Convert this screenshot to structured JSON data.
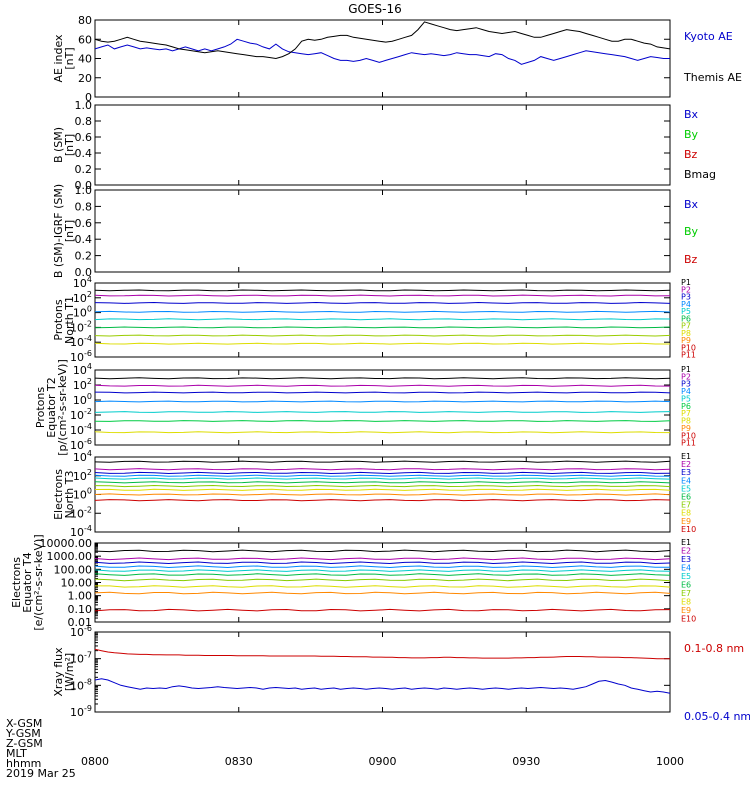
{
  "title": "GOES-16",
  "colors": {
    "frame": "#000000",
    "kyoto": "#0000cc",
    "themis": "#000000",
    "bx": "#0000cc",
    "by": "#00cc00",
    "bz": "#cc0000",
    "bmag": "#000000",
    "xray_long": "#cc0000",
    "xray_short": "#0000cc"
  },
  "time_axis": {
    "tick_labels": [
      "0800",
      "0830",
      "0900",
      "0930",
      "1000"
    ],
    "row_labels": [
      "X-GSM",
      "Y-GSM",
      "Z-GSM",
      "MLT",
      "hhmm",
      "2019 Mar 25"
    ]
  },
  "chart_data": [
    {
      "id": "ae",
      "type": "line",
      "ylabel": [
        "AE index",
        "[nT]"
      ],
      "ylim": [
        0,
        80
      ],
      "yticks": [
        "0",
        "20",
        "40",
        "60",
        "80"
      ],
      "x_start": 8.0,
      "x_end": 10.0,
      "series": [
        {
          "name": "Kyoto AE",
          "color": "#0000cc",
          "values": [
            50,
            52,
            54,
            50,
            52,
            54,
            52,
            50,
            51,
            50,
            49,
            50,
            48,
            50,
            52,
            50,
            48,
            50,
            48,
            50,
            52,
            55,
            60,
            58,
            56,
            55,
            52,
            50,
            55,
            50,
            47,
            46,
            45,
            44,
            45,
            46,
            43,
            40,
            38,
            38,
            37,
            38,
            40,
            38,
            36,
            38,
            40,
            42,
            44,
            46,
            45,
            44,
            45,
            44,
            43,
            44,
            46,
            45,
            44,
            44,
            43,
            42,
            45,
            44,
            40,
            38,
            34,
            36,
            38,
            42,
            40,
            38,
            40,
            42,
            44,
            46,
            48,
            47,
            46,
            45,
            44,
            43,
            42,
            40,
            38,
            40,
            42,
            41,
            40,
            40
          ]
        },
        {
          "name": "Themis AE",
          "color": "#000000",
          "values": [
            60,
            58,
            57,
            58,
            60,
            62,
            60,
            58,
            57,
            56,
            55,
            54,
            52,
            50,
            49,
            48,
            47,
            46,
            47,
            48,
            47,
            46,
            45,
            44,
            43,
            42,
            42,
            41,
            40,
            42,
            45,
            50,
            58,
            60,
            59,
            60,
            62,
            63,
            64,
            64,
            62,
            61,
            60,
            59,
            58,
            57,
            58,
            60,
            62,
            64,
            70,
            78,
            76,
            74,
            72,
            70,
            69,
            70,
            71,
            72,
            70,
            68,
            67,
            66,
            67,
            68,
            66,
            64,
            62,
            62,
            64,
            66,
            68,
            70,
            69,
            68,
            66,
            64,
            62,
            60,
            58,
            58,
            60,
            60,
            58,
            56,
            55,
            52,
            51,
            50
          ]
        }
      ],
      "legend": [
        "Kyoto AE",
        "Themis AE"
      ]
    },
    {
      "id": "bsm",
      "type": "line",
      "ylabel": [
        "B (SM)",
        "[nT]"
      ],
      "ylim": [
        0,
        1.0
      ],
      "yticks": [
        "0.0",
        "0.2",
        "0.4",
        "0.6",
        "0.8",
        "1.0"
      ],
      "legend": [
        "Bx",
        "By",
        "Bz",
        "Bmag"
      ],
      "series": []
    },
    {
      "id": "bsmigrf",
      "type": "line",
      "ylabel": [
        "B (SM)-IGRF (SM)",
        "[nT]"
      ],
      "ylim": [
        0,
        1.0
      ],
      "yticks": [
        "0.0",
        "0.2",
        "0.4",
        "0.6",
        "0.8",
        "1.0"
      ],
      "legend": [
        "Bx",
        "By",
        "Bz"
      ],
      "series": []
    },
    {
      "id": "pn",
      "type": "line",
      "scale": "log",
      "ylabel": [
        "Protons",
        "North T1"
      ],
      "ylim_exp": [
        -6,
        4
      ],
      "yticks_exp": [
        -6,
        -4,
        -2,
        0,
        2,
        4
      ],
      "legend": [
        "P1",
        "P2",
        "P3",
        "P4",
        "P5",
        "P6",
        "P7",
        "P8",
        "P9",
        "P10",
        "P11"
      ],
      "series": [
        {
          "name": "P1",
          "color": "#000000",
          "log_level": 3.0
        },
        {
          "name": "P2",
          "color": "#aa00aa",
          "log_level": 2.3
        },
        {
          "name": "P3",
          "color": "#0000cc",
          "log_level": 1.3
        },
        {
          "name": "P4",
          "color": "#0088ff",
          "log_level": 0.1
        },
        {
          "name": "P5",
          "color": "#00cccc",
          "log_level": -0.9
        },
        {
          "name": "P6",
          "color": "#00bb44",
          "log_level": -2.0
        },
        {
          "name": "P7",
          "color": "#99cc00",
          "log_level": -3.1
        },
        {
          "name": "P8",
          "color": "#dddd00",
          "log_level": -4.2
        }
      ]
    },
    {
      "id": "pe",
      "type": "line",
      "scale": "log",
      "ylabel": [
        "Protons",
        "Equator T2",
        "[p/(cm²-s-sr-keV)]"
      ],
      "ylim_exp": [
        -6,
        4
      ],
      "yticks_exp": [
        -6,
        -4,
        -2,
        0,
        2,
        4
      ],
      "legend": [
        "P1",
        "P2",
        "P3",
        "P4",
        "P5",
        "P6",
        "P7",
        "P8",
        "P9",
        "P10",
        "P11"
      ],
      "series": [
        {
          "name": "P1",
          "color": "#000000",
          "log_level": 2.9
        },
        {
          "name": "P2",
          "color": "#aa00aa",
          "log_level": 1.9
        },
        {
          "name": "P3",
          "color": "#0000cc",
          "log_level": 1.0
        },
        {
          "name": "P4",
          "color": "#0088ff",
          "log_level": -0.2
        },
        {
          "name": "P5",
          "color": "#00cccc",
          "log_level": -1.6
        },
        {
          "name": "P6",
          "color": "#00cc44",
          "log_level": -2.8
        },
        {
          "name": "P7",
          "color": "#dddd00",
          "log_level": -4.3
        }
      ]
    },
    {
      "id": "en",
      "type": "line",
      "scale": "log",
      "ylabel": [
        "Electrons",
        "North T3"
      ],
      "ylim_exp": [
        -4,
        4
      ],
      "yticks_exp": [
        -4,
        -2,
        0,
        2,
        4
      ],
      "legend": [
        "E1",
        "E2",
        "E3",
        "E4",
        "E5",
        "E6",
        "E7",
        "E8",
        "E9",
        "E10"
      ],
      "series": [
        {
          "name": "E1",
          "color": "#000000",
          "log_level": 3.5
        },
        {
          "name": "E2",
          "color": "#aa00aa",
          "log_level": 2.7
        },
        {
          "name": "E3",
          "color": "#0000cc",
          "log_level": 2.3
        },
        {
          "name": "E4",
          "color": "#0088ff",
          "log_level": 2.0
        },
        {
          "name": "E5",
          "color": "#00cccc",
          "log_level": 1.7
        },
        {
          "name": "E6",
          "color": "#00bb44",
          "log_level": 1.3
        },
        {
          "name": "E7",
          "color": "#88cc00",
          "log_level": 0.9
        },
        {
          "name": "E8",
          "color": "#dddd00",
          "log_level": 0.5
        },
        {
          "name": "E9",
          "color": "#ff8800",
          "log_level": 0.0
        },
        {
          "name": "E10",
          "color": "#cc0000",
          "log_level": -0.6
        }
      ]
    },
    {
      "id": "ee",
      "type": "line",
      "scale": "log",
      "ylabel": [
        "Electrons",
        "Equator T4",
        "[e/(cm²-s-sr-keV)]"
      ],
      "ylim_exp": [
        -2,
        4
      ],
      "yticks": [
        "0.01",
        "0.10",
        "1.00",
        "10.00",
        "100.00",
        "1000.00",
        "10000.00"
      ],
      "yticks_exp": [
        -2,
        -1,
        0,
        1,
        2,
        3,
        4
      ],
      "legend": [
        "E1",
        "E2",
        "E3",
        "E4",
        "E5",
        "E6",
        "E7",
        "E8",
        "E9",
        "E10"
      ],
      "series": [
        {
          "name": "E1",
          "color": "#000000",
          "log_level": 3.4
        },
        {
          "name": "E2",
          "color": "#aa00aa",
          "log_level": 2.8
        },
        {
          "name": "E3",
          "color": "#0000cc",
          "log_level": 2.5
        },
        {
          "name": "E4",
          "color": "#0088ff",
          "log_level": 2.2
        },
        {
          "name": "E5",
          "color": "#00cccc",
          "log_level": 1.9
        },
        {
          "name": "E6",
          "color": "#00bb44",
          "log_level": 1.6
        },
        {
          "name": "E7",
          "color": "#88cc00",
          "log_level": 1.2
        },
        {
          "name": "E8",
          "color": "#dddd00",
          "log_level": 0.7
        },
        {
          "name": "E9",
          "color": "#ff8800",
          "log_level": 0.2
        },
        {
          "name": "E10",
          "color": "#cc0000",
          "log_level": -1.1
        }
      ]
    },
    {
      "id": "xray",
      "type": "line",
      "scale": "log",
      "ylabel": [
        "Xray flux",
        "[W/m²]"
      ],
      "ylim_exp": [
        -9,
        -6
      ],
      "yticks_exp": [
        -9,
        -8,
        -7,
        -6
      ],
      "legend": [
        "0.1-0.8 nm",
        "0.05-0.4 nm"
      ],
      "series": [
        {
          "name": "0.1-0.8 nm",
          "color": "#cc0000",
          "values": [
            -6.65,
            -6.7,
            -6.75,
            -6.78,
            -6.8,
            -6.82,
            -6.83,
            -6.84,
            -6.84,
            -6.85,
            -6.85,
            -6.86,
            -6.86,
            -6.86,
            -6.87,
            -6.87,
            -6.87,
            -6.88,
            -6.88,
            -6.88,
            -6.88,
            -6.88,
            -6.89,
            -6.89,
            -6.89,
            -6.89,
            -6.89,
            -6.9,
            -6.9,
            -6.9,
            -6.9,
            -6.9,
            -6.9,
            -6.9,
            -6.9,
            -6.91,
            -6.91,
            -6.91,
            -6.92,
            -6.92,
            -6.93,
            -6.93,
            -6.93,
            -6.94,
            -6.94,
            -6.95,
            -6.95,
            -6.96,
            -6.96,
            -6.97,
            -6.97,
            -6.97,
            -6.96,
            -6.96,
            -6.95,
            -6.95,
            -6.96,
            -6.96,
            -6.97,
            -6.97,
            -6.98,
            -6.98,
            -6.98,
            -6.98,
            -6.98,
            -6.97,
            -6.97,
            -6.96,
            -6.96,
            -6.95,
            -6.95,
            -6.94,
            -6.93,
            -6.92,
            -6.92,
            -6.92,
            -6.93,
            -6.93,
            -6.94,
            -6.94,
            -6.95,
            -6.95,
            -6.96,
            -6.96,
            -6.97,
            -6.98,
            -6.99,
            -7.0,
            -7.0,
            -7.0
          ]
        },
        {
          "name": "0.05-0.4 nm",
          "color": "#0000cc",
          "values": [
            -7.8,
            -7.75,
            -7.8,
            -7.9,
            -8.0,
            -8.05,
            -8.1,
            -8.15,
            -8.1,
            -8.12,
            -8.1,
            -8.12,
            -8.05,
            -8.02,
            -8.05,
            -8.1,
            -8.12,
            -8.1,
            -8.08,
            -8.05,
            -8.08,
            -8.1,
            -8.12,
            -8.1,
            -8.08,
            -8.1,
            -8.15,
            -8.1,
            -8.08,
            -8.1,
            -8.12,
            -8.1,
            -8.15,
            -8.12,
            -8.1,
            -8.15,
            -8.12,
            -8.1,
            -8.15,
            -8.12,
            -8.1,
            -8.12,
            -8.15,
            -8.12,
            -8.1,
            -8.12,
            -8.15,
            -8.12,
            -8.1,
            -8.15,
            -8.12,
            -8.1,
            -8.12,
            -8.15,
            -8.1,
            -8.12,
            -8.15,
            -8.12,
            -8.1,
            -8.12,
            -8.15,
            -8.12,
            -8.1,
            -8.12,
            -8.15,
            -8.12,
            -8.1,
            -8.12,
            -8.1,
            -8.08,
            -8.1,
            -8.12,
            -8.1,
            -8.12,
            -8.15,
            -8.1,
            -8.05,
            -7.95,
            -7.85,
            -7.82,
            -7.88,
            -7.95,
            -8.0,
            -8.1,
            -8.15,
            -8.2,
            -8.25,
            -8.22,
            -8.25,
            -8.3
          ]
        }
      ]
    }
  ]
}
